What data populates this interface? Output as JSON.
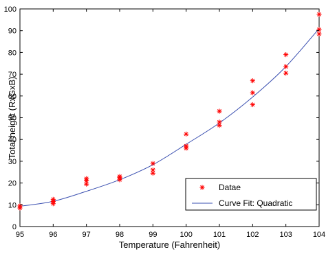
{
  "chart_data": {
    "type": "scatter",
    "title": "",
    "xlabel": "Temperature (Fahrenheit)",
    "ylabel": "Total height (RxGxB)",
    "xlim": [
      95,
      104
    ],
    "ylim": [
      0,
      100
    ],
    "x_ticks": [
      95,
      96,
      97,
      98,
      99,
      100,
      101,
      102,
      103,
      104
    ],
    "y_ticks": [
      0,
      10,
      20,
      30,
      40,
      50,
      60,
      70,
      80,
      90,
      100
    ],
    "grid": false,
    "legend_position": "bottom-right",
    "series": [
      {
        "name": "Datae",
        "kind": "scatter",
        "marker": "asterisk",
        "color": "#ff0000",
        "points": [
          [
            95,
            8.5
          ],
          [
            95,
            9.5
          ],
          [
            96,
            10.5
          ],
          [
            96,
            11.5
          ],
          [
            96,
            12.5
          ],
          [
            97,
            19.5
          ],
          [
            97,
            21.0
          ],
          [
            97,
            22.0
          ],
          [
            98,
            21.5
          ],
          [
            98,
            22.5
          ],
          [
            98,
            23.0
          ],
          [
            99,
            24.5
          ],
          [
            99,
            26.0
          ],
          [
            99,
            29.0
          ],
          [
            100,
            36.0
          ],
          [
            100,
            37.0
          ],
          [
            100,
            42.5
          ],
          [
            101,
            46.5
          ],
          [
            101,
            48.0
          ],
          [
            101,
            53.0
          ],
          [
            102,
            56.0
          ],
          [
            102,
            61.5
          ],
          [
            102,
            67.0
          ],
          [
            103,
            70.5
          ],
          [
            103,
            73.5
          ],
          [
            103,
            79.0
          ],
          [
            104,
            88.5
          ],
          [
            104,
            90.5
          ],
          [
            104,
            97.5
          ]
        ]
      },
      {
        "name": "Curve Fit: Quadratic",
        "kind": "line",
        "color": "#3a4fb0",
        "points": [
          [
            95,
            9.3
          ],
          [
            96,
            11.6
          ],
          [
            97,
            16.2
          ],
          [
            98,
            21.5
          ],
          [
            99,
            28.4
          ],
          [
            100,
            37.8
          ],
          [
            101,
            47.6
          ],
          [
            102,
            59.5
          ],
          [
            103,
            73.5
          ],
          [
            104,
            91.0
          ]
        ]
      }
    ]
  }
}
